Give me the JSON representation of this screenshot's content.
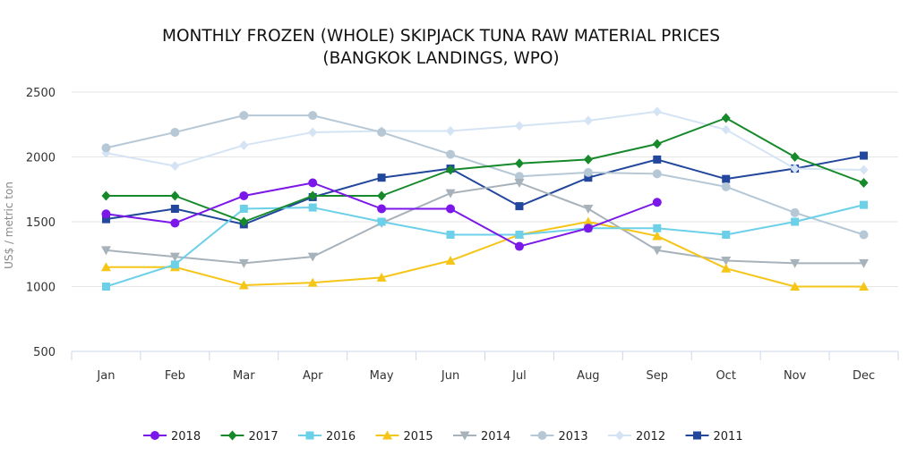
{
  "title_line1": "MONTHLY FROZEN (WHOLE) SKIPJACK TUNA RAW MATERIAL PRICES",
  "title_line2": "(BANGKOK LANDINGS, WPO)",
  "chart_data": {
    "type": "line",
    "ylabel": "US$ / metric ton",
    "xlabel": "",
    "ylim": [
      500,
      2500
    ],
    "yticks": [
      500,
      1000,
      1500,
      2000,
      2500
    ],
    "grid": true,
    "legend_position": "bottom",
    "categories": [
      "Jan",
      "Feb",
      "Mar",
      "Apr",
      "May",
      "Jun",
      "Jul",
      "Aug",
      "Sep",
      "Oct",
      "Nov",
      "Dec"
    ],
    "series": [
      {
        "name": "2018",
        "color": "#7b17e8",
        "marker": "circle",
        "values": [
          1560,
          1490,
          1700,
          1800,
          1600,
          1600,
          1310,
          1450,
          1650,
          null,
          null,
          null
        ]
      },
      {
        "name": "2017",
        "color": "#168a2b",
        "marker": "diamond",
        "values": [
          1700,
          1700,
          1500,
          1700,
          1700,
          1900,
          1950,
          1980,
          2100,
          2300,
          2000,
          1800
        ]
      },
      {
        "name": "2016",
        "color": "#6bd0e8",
        "marker": "square",
        "values": [
          1000,
          1170,
          1600,
          1610,
          1500,
          1400,
          1400,
          1450,
          1450,
          1400,
          1500,
          1630
        ]
      },
      {
        "name": "2015",
        "color": "#f5c518",
        "marker": "triangle",
        "values": [
          1150,
          1150,
          1010,
          1030,
          1070,
          1200,
          1400,
          1500,
          1390,
          1140,
          1000,
          1000
        ]
      },
      {
        "name": "2014",
        "color": "#a8b2ba",
        "marker": "triangle-down",
        "values": [
          1280,
          1230,
          1180,
          1230,
          1490,
          1720,
          1800,
          1600,
          1280,
          1200,
          1180,
          1180
        ]
      },
      {
        "name": "2013",
        "color": "#b6c8d6",
        "marker": "circle",
        "values": [
          2070,
          2190,
          2320,
          2320,
          2190,
          2020,
          1850,
          1880,
          1870,
          1770,
          1570,
          1400
        ]
      },
      {
        "name": "2012",
        "color": "#d5e4f5",
        "marker": "diamond",
        "values": [
          2030,
          1930,
          2090,
          2190,
          2200,
          2200,
          2240,
          2280,
          2350,
          2210,
          1910,
          1900
        ]
      },
      {
        "name": "2011",
        "color": "#22479c",
        "marker": "square",
        "values": [
          1520,
          1600,
          1480,
          1690,
          1840,
          1910,
          1620,
          1840,
          1980,
          1830,
          1910,
          2010
        ]
      }
    ]
  }
}
